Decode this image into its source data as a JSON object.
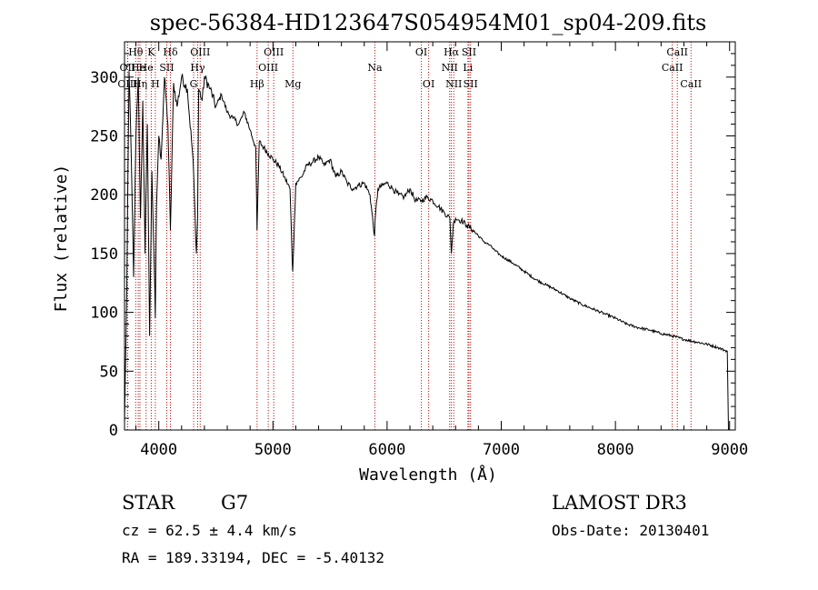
{
  "chart_data": {
    "type": "line",
    "title": "spec-56384-HD123647S054954M01_sp04-209.fits",
    "xlabel": "Wavelength (Å)",
    "ylabel": "Flux (relative)",
    "xlim": [
      3700,
      9050
    ],
    "ylim": [
      0,
      330
    ],
    "grid": false,
    "legend": "none",
    "xticks": [
      4000,
      5000,
      6000,
      7000,
      8000,
      9000
    ],
    "yticks": [
      0,
      50,
      100,
      150,
      200,
      250,
      300
    ],
    "series": [
      {
        "name": "flux",
        "x": [
          3700,
          3720,
          3740,
          3760,
          3780,
          3800,
          3820,
          3840,
          3860,
          3880,
          3900,
          3920,
          3940,
          3960,
          3970,
          3980,
          4000,
          4020,
          4050,
          4080,
          4102,
          4130,
          4160,
          4200,
          4250,
          4300,
          4330,
          4340,
          4350,
          4380,
          4400,
          4450,
          4500,
          4550,
          4600,
          4650,
          4700,
          4750,
          4800,
          4850,
          4861,
          4880,
          4920,
          4960,
          5000,
          5050,
          5100,
          5150,
          5167,
          5173,
          5183,
          5200,
          5250,
          5300,
          5350,
          5400,
          5450,
          5500,
          5550,
          5600,
          5650,
          5700,
          5750,
          5800,
          5850,
          5890,
          5896,
          5920,
          5960,
          6000,
          6050,
          6100,
          6150,
          6200,
          6250,
          6300,
          6350,
          6400,
          6450,
          6500,
          6550,
          6563,
          6580,
          6600,
          6650,
          6700,
          6750,
          6800,
          6850,
          6900,
          6950,
          7000,
          7100,
          7200,
          7300,
          7400,
          7500,
          7600,
          7700,
          7800,
          7900,
          8000,
          8100,
          8200,
          8300,
          8400,
          8500,
          8600,
          8700,
          8800,
          8900,
          8950,
          8980
        ],
        "values": [
          5,
          120,
          305,
          230,
          130,
          250,
          300,
          180,
          280,
          150,
          260,
          80,
          220,
          140,
          95,
          190,
          250,
          230,
          300,
          260,
          170,
          295,
          275,
          300,
          290,
          230,
          150,
          180,
          290,
          280,
          300,
          290,
          275,
          285,
          270,
          265,
          260,
          270,
          255,
          240,
          170,
          245,
          240,
          235,
          230,
          225,
          215,
          205,
          150,
          135,
          160,
          210,
          215,
          225,
          228,
          232,
          225,
          230,
          215,
          220,
          210,
          205,
          208,
          210,
          200,
          165,
          180,
          205,
          208,
          210,
          205,
          200,
          198,
          205,
          195,
          195,
          198,
          195,
          190,
          185,
          180,
          150,
          175,
          180,
          178,
          174,
          170,
          165,
          160,
          157,
          152,
          148,
          142,
          135,
          128,
          123,
          118,
          112,
          107,
          103,
          99,
          95,
          90,
          87,
          85,
          82,
          80,
          77,
          75,
          73,
          70,
          68,
          67
        ]
      }
    ],
    "lines": [
      {
        "label": "Hθ",
        "x": 3798,
        "row": 1
      },
      {
        "label": "OII",
        "x": 3727,
        "row": 2
      },
      {
        "label": "OIII",
        "x": 3727,
        "row": 3
      },
      {
        "label": "He",
        "x": 3820,
        "row": 2
      },
      {
        "label": "Hη",
        "x": 3835,
        "row": 3
      },
      {
        "label": "K",
        "x": 3934,
        "row": 1
      },
      {
        "label": "He",
        "x": 3889,
        "row": 2
      },
      {
        "label": "H",
        "x": 3970,
        "row": 3
      },
      {
        "label": "Hδ",
        "x": 4102,
        "row": 1
      },
      {
        "label": "SII",
        "x": 4070,
        "row": 2
      },
      {
        "label": "OIII",
        "x": 4363,
        "row": 1
      },
      {
        "label": "Hγ",
        "x": 4341,
        "row": 2
      },
      {
        "label": "G",
        "x": 4305,
        "row": 3
      },
      {
        "label": "OIII",
        "x": 5007,
        "row": 1
      },
      {
        "label": "OIII",
        "x": 4959,
        "row": 2
      },
      {
        "label": "Hβ",
        "x": 4861,
        "row": 3
      },
      {
        "label": "Mg",
        "x": 5175,
        "row": 3
      },
      {
        "label": "Na",
        "x": 5893,
        "row": 2
      },
      {
        "label": "OI",
        "x": 6300,
        "row": 1
      },
      {
        "label": "OI",
        "x": 6364,
        "row": 3
      },
      {
        "label": "Hα",
        "x": 6563,
        "row": 1
      },
      {
        "label": "NII",
        "x": 6548,
        "row": 2
      },
      {
        "label": "NII",
        "x": 6584,
        "row": 3
      },
      {
        "label": "SII",
        "x": 6717,
        "row": 1
      },
      {
        "label": "Li",
        "x": 6708,
        "row": 2
      },
      {
        "label": "SII",
        "x": 6731,
        "row": 3
      },
      {
        "label": "CaII",
        "x": 8542,
        "row": 1
      },
      {
        "label": "CaII",
        "x": 8498,
        "row": 2
      },
      {
        "label": "CaII",
        "x": 8662,
        "row": 3
      }
    ]
  },
  "info": {
    "class": "STAR",
    "subclass": "G7",
    "cz": "cz = 62.5 ± 4.4 km/s",
    "radec": "RA = 189.33194, DEC =  -5.40132",
    "survey": "LAMOST DR3",
    "obs_date": "Obs-Date: 20130401"
  },
  "colors": {
    "line_marker": "#cc0000",
    "spectrum": "#000000",
    "axes": "#000000"
  }
}
